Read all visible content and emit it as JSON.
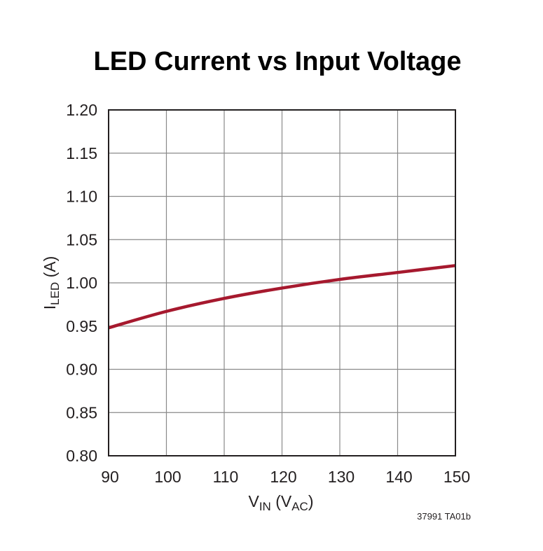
{
  "chart_data": {
    "type": "line",
    "title": "LED Current vs Input Voltage",
    "xlabel": {
      "main": "V",
      "sub": "IN",
      "paren_open": " (V",
      "paren_sub": "AC",
      "paren_close": ")"
    },
    "ylabel": {
      "main": "I",
      "sub": "LED",
      "rest": " (A)"
    },
    "xlim": [
      90,
      150
    ],
    "ylim": [
      0.8,
      1.2
    ],
    "x_ticks": [
      "90",
      "100",
      "110",
      "120",
      "130",
      "140",
      "150"
    ],
    "y_ticks": [
      "0.80",
      "0.85",
      "0.90",
      "0.95",
      "1.00",
      "1.05",
      "1.10",
      "1.15",
      "1.20"
    ],
    "grid": true,
    "series": [
      {
        "color": "#a6192e",
        "x": [
          90,
          100,
          110,
          120,
          130,
          140,
          150
        ],
        "y": [
          0.948,
          0.967,
          0.982,
          0.994,
          1.004,
          1.012,
          1.02
        ]
      }
    ]
  },
  "figure_code": "37991 TA01b"
}
